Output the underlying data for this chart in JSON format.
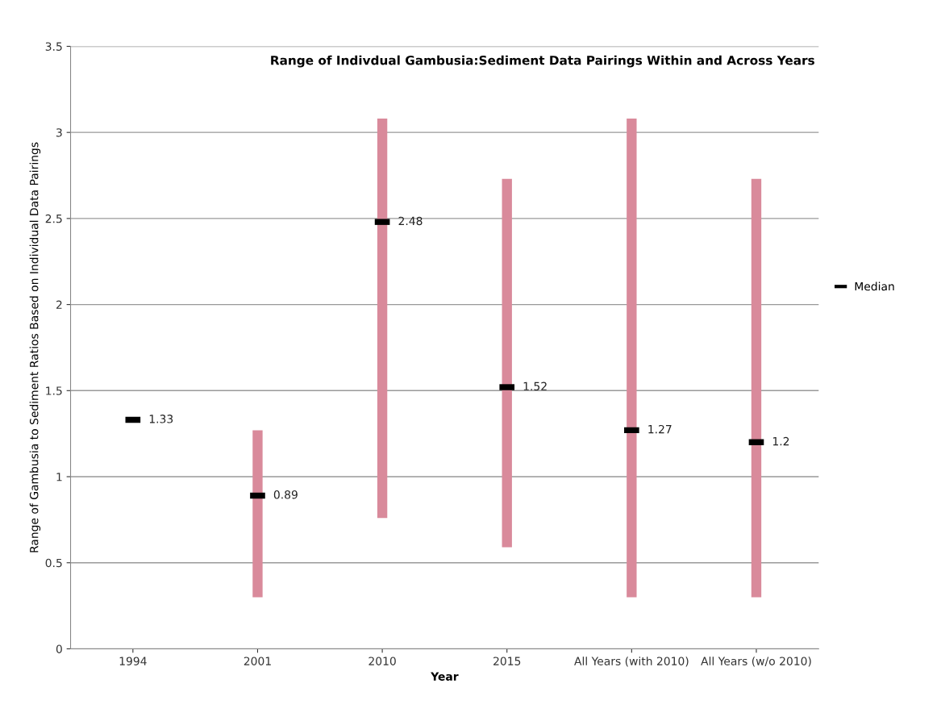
{
  "chart_data": {
    "type": "bar",
    "title": "Range of Indivdual Gambusia:Sediment Data Pairings Within and Across Years",
    "xlabel": "Year",
    "ylabel": "Range of Gambusia to Sediment Ratios Based on Individual Data Pairings",
    "categories": [
      "1994",
      "2001",
      "2010",
      "2015",
      "All Years (with 2010)",
      "All Years (w/o 2010)"
    ],
    "series": [
      {
        "color": "#d98a9b",
        "values": [
          null,
          0.97,
          2.32,
          2.14,
          2.78,
          2.43
        ],
        "base": [
          null,
          0.3,
          0.76,
          0.59,
          0.3,
          0.3
        ]
      },
      {
        "type": "scatter",
        "name": "Median",
        "color": "#000000",
        "values": [
          1.33,
          0.89,
          2.48,
          1.52,
          1.27,
          1.2
        ],
        "value_labels": [
          "1.33",
          "0.89",
          "2.48",
          "1.52",
          "1.27",
          "1.2"
        ]
      }
    ],
    "ylim": [
      0,
      3.5
    ],
    "yticks": [
      0,
      0.5,
      1,
      1.5,
      2,
      2.5,
      3,
      3.5
    ],
    "grid": "y",
    "legend": "right"
  }
}
